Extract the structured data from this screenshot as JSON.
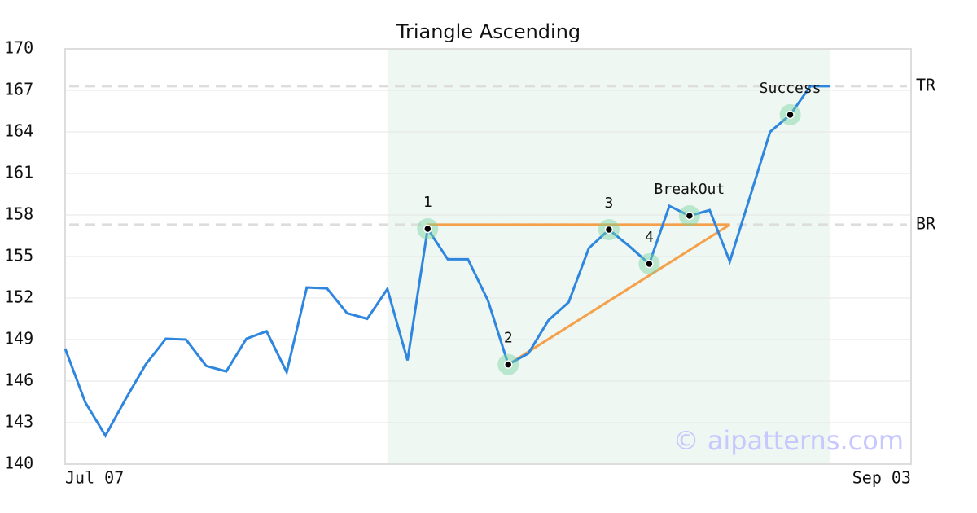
{
  "chart_data": {
    "type": "line",
    "title": "Triangle Ascending",
    "x": [
      0,
      1,
      2,
      3,
      4,
      5,
      6,
      7,
      8,
      9,
      10,
      11,
      12,
      13,
      14,
      15,
      16,
      17,
      18,
      19,
      20,
      21,
      22,
      23,
      24,
      25,
      26,
      27,
      28,
      29,
      30,
      31,
      32,
      33,
      34,
      35,
      36,
      37,
      38
    ],
    "values": [
      148.35,
      144.47,
      142.06,
      144.7,
      147.2,
      149.06,
      149.0,
      147.1,
      146.7,
      149.06,
      149.6,
      146.65,
      152.76,
      152.7,
      150.9,
      150.5,
      152.65,
      147.5,
      157.0,
      154.8,
      154.8,
      151.8,
      147.2,
      148.0,
      150.4,
      151.7,
      155.6,
      156.94,
      155.76,
      154.47,
      158.65,
      157.94,
      158.35,
      154.65,
      159.3,
      164.0,
      165.24,
      167.3,
      167.3
    ],
    "color": "#2e86de",
    "xlim": [
      0,
      42
    ],
    "xticks": [
      {
        "value": 0,
        "label": "Jul 07"
      },
      {
        "value": 42,
        "label": "Sep 03"
      }
    ],
    "ylim": [
      140,
      170
    ],
    "yticks": [
      140,
      143,
      146,
      149,
      152,
      155,
      158,
      161,
      164,
      167,
      170
    ],
    "grid": true,
    "highlight": [
      16,
      38
    ],
    "levels": [
      {
        "label": "TR",
        "value": 167.3
      },
      {
        "label": "BR",
        "value": 157.3
      }
    ],
    "pattern_color": "#f5a04a",
    "pattern_lines": [
      {
        "x": [
          18,
          33
        ],
        "y": [
          157.3,
          157.3
        ]
      },
      {
        "x": [
          22,
          33
        ],
        "y": [
          147.2,
          157.3
        ]
      }
    ],
    "points": [
      {
        "x": 18,
        "y": 157.0,
        "label": "1"
      },
      {
        "x": 22,
        "y": 147.2,
        "label": "2"
      },
      {
        "x": 27,
        "y": 156.94,
        "label": "3"
      },
      {
        "x": 29,
        "y": 154.47,
        "label": "4"
      },
      {
        "x": 31,
        "y": 157.94,
        "label": "BreakOut"
      },
      {
        "x": 36,
        "y": 165.24,
        "label": "Success"
      }
    ],
    "watermark": "© aipatterns.com"
  }
}
